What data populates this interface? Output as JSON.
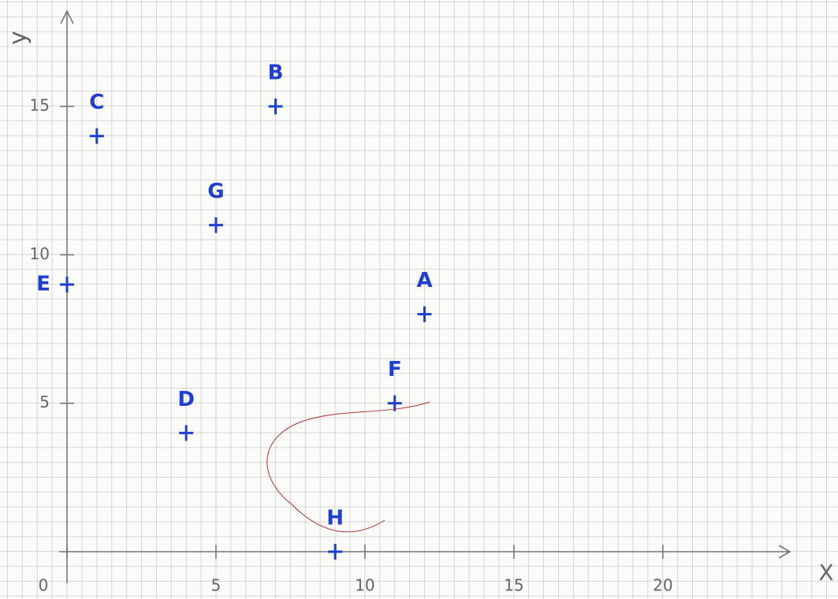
{
  "chart_data": {
    "type": "scatter",
    "x_label": "X",
    "y_label": "y",
    "point_labels": [
      "A",
      "B",
      "C",
      "D",
      "E",
      "F",
      "G",
      "H"
    ],
    "x": [
      12,
      7,
      1,
      4,
      0,
      11,
      5,
      9
    ],
    "values": [
      8,
      15,
      14,
      4,
      9,
      5,
      11,
      0
    ],
    "color": "#1f3fd0",
    "xlim": [
      0,
      24
    ],
    "ylim": [
      0,
      18
    ],
    "xticks": [
      0,
      5,
      10,
      15,
      20
    ],
    "yticks": [
      5,
      10,
      15
    ]
  }
}
